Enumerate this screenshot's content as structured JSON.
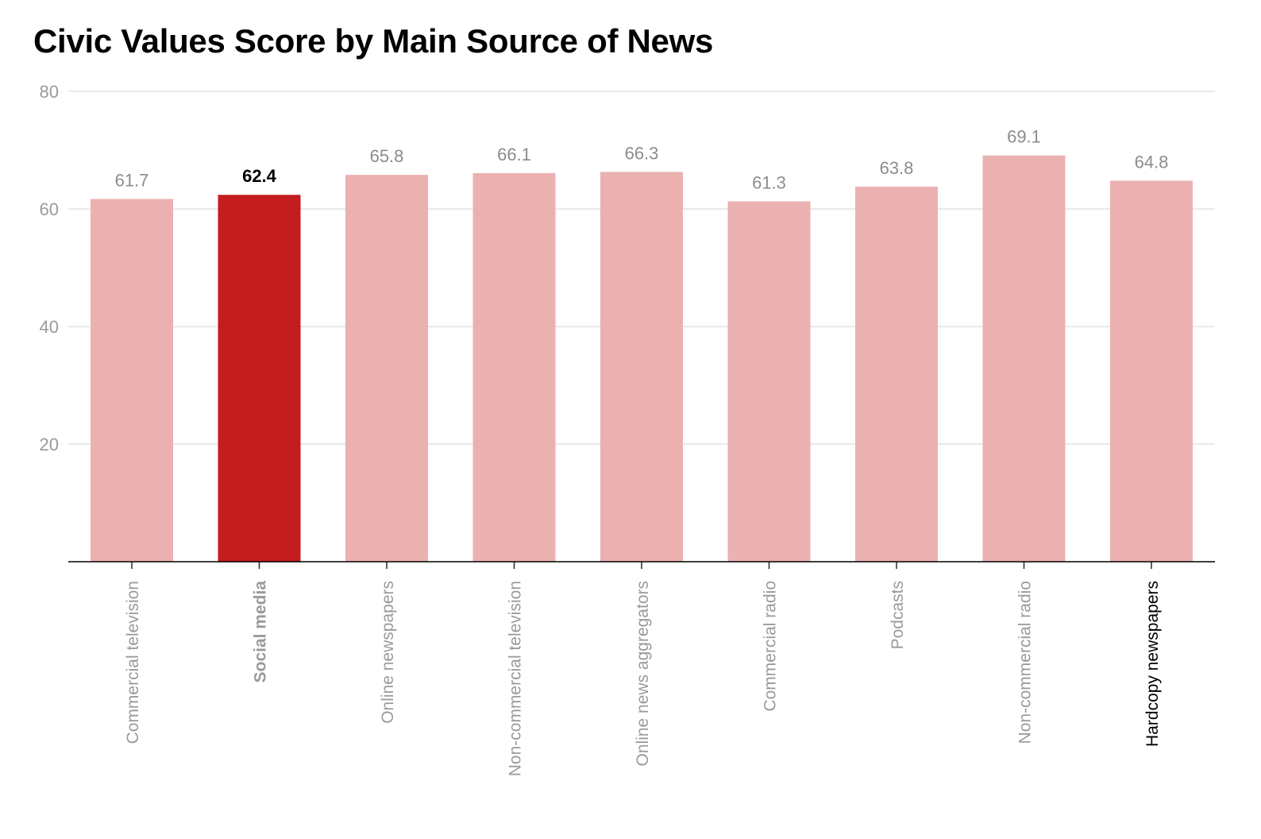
{
  "chart_data": {
    "type": "bar",
    "title": "Civic Values Score by Main Source of News",
    "xlabel": "",
    "ylabel": "",
    "ylim": [
      0,
      80
    ],
    "yticks": [
      20,
      40,
      60,
      80
    ],
    "grid": true,
    "categories": [
      "Commercial television",
      "Social media",
      "Online newspapers",
      "Non-commercial television",
      "Online news aggregators",
      "Commercial radio",
      "Podcasts",
      "Non-commercial radio",
      "Hardcopy newspapers"
    ],
    "values": [
      61.7,
      62.4,
      65.8,
      66.1,
      66.3,
      61.3,
      63.8,
      69.1,
      64.8
    ],
    "value_labels": [
      "61.7",
      "62.4",
      "65.8",
      "66.1",
      "66.3",
      "61.3",
      "63.8",
      "69.1",
      "64.8"
    ],
    "highlight_category": "Social media",
    "colors": {
      "default_bar": "#ebb1b1",
      "highlight_bar": "#c41c1f"
    }
  }
}
